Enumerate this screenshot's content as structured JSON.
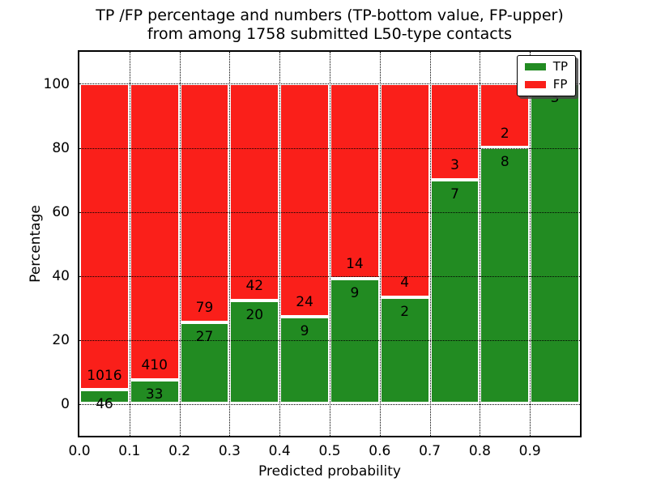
{
  "title": {
    "line1": "TP /FP percentage and numbers (TP-bottom value, FP-upper)",
    "line2": "from among 1758 submitted L50-type contacts"
  },
  "axes": {
    "x_label": "Predicted probability",
    "y_label": "Percentage",
    "x_tick_labels": [
      "0.0",
      "0.1",
      "0.2",
      "0.3",
      "0.4",
      "0.5",
      "0.6",
      "0.7",
      "0.8",
      "0.9"
    ],
    "y_tick_labels": [
      "0",
      "20",
      "40",
      "60",
      "80",
      "100"
    ]
  },
  "legend": {
    "items": [
      {
        "label": "TP",
        "color": "#228b22"
      },
      {
        "label": "FP",
        "color": "#fa1f1a"
      }
    ]
  },
  "colors": {
    "tp_green": "#228b22",
    "fp_red": "#fa1f1a",
    "bar_edge": "#ffffff",
    "grid": "#000000"
  },
  "chart_data": {
    "type": "bar",
    "stacked": true,
    "units": "percent-of-bin",
    "title": "TP /FP percentage and numbers (TP-bottom value, FP-upper) from among 1758 submitted L50-type contacts",
    "xlabel": "Predicted probability",
    "ylabel": "Percentage",
    "xlim": [
      0.0,
      1.0
    ],
    "ylim": [
      -10,
      110
    ],
    "y_ticks": [
      0,
      20,
      40,
      60,
      80,
      100
    ],
    "x_ticks": [
      0.0,
      0.1,
      0.2,
      0.3,
      0.4,
      0.5,
      0.6,
      0.7,
      0.8,
      0.9
    ],
    "bin_width": 0.1,
    "bin_starts": [
      0.0,
      0.1,
      0.2,
      0.3,
      0.4,
      0.5,
      0.6,
      0.7,
      0.8,
      0.9
    ],
    "series": [
      {
        "name": "TP",
        "color": "#228b22",
        "counts": [
          46,
          33,
          27,
          20,
          9,
          9,
          2,
          7,
          8,
          3
        ]
      },
      {
        "name": "FP",
        "color": "#fa1f1a",
        "counts": [
          1016,
          410,
          79,
          42,
          24,
          14,
          4,
          3,
          2,
          null
        ]
      }
    ],
    "tp_percent_of_bin": [
      4.33,
      7.45,
      25.47,
      32.26,
      27.27,
      39.13,
      33.33,
      70.0,
      80.0,
      100.0
    ],
    "total_submitted": 1758,
    "grid": "dotted, both axes, drawn over bars",
    "legend_position": "upper right",
    "annotation_rule": "TP count printed just below top of green segment, FP count just above it"
  }
}
